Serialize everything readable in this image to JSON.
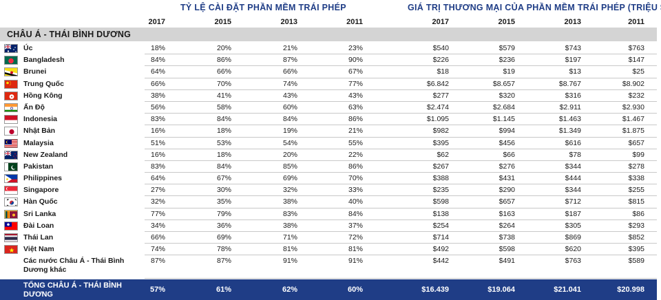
{
  "headers": {
    "rate_title": "TỶ LỆ CÀI ĐẶT PHẦN MỀM TRÁI PHÉP",
    "value_title": "GIÁ TRỊ THƯƠNG MẠI CỦA PHẦN MỀM TRÁI PHÉP (TRIỆU $)",
    "years": [
      "2017",
      "2015",
      "2013",
      "2011",
      "2017",
      "2015",
      "2013",
      "2011"
    ]
  },
  "region": "CHÂU Á - THÁI BÌNH DƯƠNG",
  "rows": [
    {
      "name": "Úc",
      "flag": "australia-flag-icon",
      "values": [
        "18%",
        "20%",
        "21%",
        "23%",
        "$540",
        "$579",
        "$743",
        "$763"
      ]
    },
    {
      "name": "Bangladesh",
      "flag": "bangladesh-flag-icon",
      "values": [
        "84%",
        "86%",
        "87%",
        "90%",
        "$226",
        "$236",
        "$197",
        "$147"
      ]
    },
    {
      "name": "Brunei",
      "flag": "brunei-flag-icon",
      "values": [
        "64%",
        "66%",
        "66%",
        "67%",
        "$18",
        "$19",
        "$13",
        "$25"
      ]
    },
    {
      "name": "Trung Quốc",
      "flag": "china-flag-icon",
      "values": [
        "66%",
        "70%",
        "74%",
        "77%",
        "$6.842",
        "$8.657",
        "$8.767",
        "$8.902"
      ]
    },
    {
      "name": "Hồng Kông",
      "flag": "hong-kong-flag-icon",
      "values": [
        "38%",
        "41%",
        "43%",
        "43%",
        "$277",
        "$320",
        "$316",
        "$232"
      ]
    },
    {
      "name": "Ấn Độ",
      "flag": "india-flag-icon",
      "values": [
        "56%",
        "58%",
        "60%",
        "63%",
        "$2.474",
        "$2.684",
        "$2.911",
        "$2.930"
      ]
    },
    {
      "name": "Indonesia",
      "flag": "indonesia-flag-icon",
      "values": [
        "83%",
        "84%",
        "84%",
        "86%",
        "$1.095",
        "$1.145",
        "$1.463",
        "$1.467"
      ]
    },
    {
      "name": "Nhật Bản",
      "flag": "japan-flag-icon",
      "values": [
        "16%",
        "18%",
        "19%",
        "21%",
        "$982",
        "$994",
        "$1.349",
        "$1.875"
      ]
    },
    {
      "name": "Malaysia",
      "flag": "malaysia-flag-icon",
      "values": [
        "51%",
        "53%",
        "54%",
        "55%",
        "$395",
        "$456",
        "$616",
        "$657"
      ]
    },
    {
      "name": "New Zealand",
      "flag": "new-zealand-flag-icon",
      "values": [
        "16%",
        "18%",
        "20%",
        "22%",
        "$62",
        "$66",
        "$78",
        "$99"
      ]
    },
    {
      "name": "Pakistan",
      "flag": "pakistan-flag-icon",
      "values": [
        "83%",
        "84%",
        "85%",
        "86%",
        "$267",
        "$276",
        "$344",
        "$278"
      ]
    },
    {
      "name": "Philippines",
      "flag": "philippines-flag-icon",
      "values": [
        "64%",
        "67%",
        "69%",
        "70%",
        "$388",
        "$431",
        "$444",
        "$338"
      ]
    },
    {
      "name": "Singapore",
      "flag": "singapore-flag-icon",
      "values": [
        "27%",
        "30%",
        "32%",
        "33%",
        "$235",
        "$290",
        "$344",
        "$255"
      ]
    },
    {
      "name": "Hàn Quốc",
      "flag": "south-korea-flag-icon",
      "values": [
        "32%",
        "35%",
        "38%",
        "40%",
        "$598",
        "$657",
        "$712",
        "$815"
      ]
    },
    {
      "name": "Sri Lanka",
      "flag": "sri-lanka-flag-icon",
      "values": [
        "77%",
        "79%",
        "83%",
        "84%",
        "$138",
        "$163",
        "$187",
        "$86"
      ]
    },
    {
      "name": "Đài Loan",
      "flag": "taiwan-flag-icon",
      "values": [
        "34%",
        "36%",
        "38%",
        "37%",
        "$254",
        "$264",
        "$305",
        "$293"
      ]
    },
    {
      "name": "Thái Lan",
      "flag": "thailand-flag-icon",
      "values": [
        "66%",
        "69%",
        "71%",
        "72%",
        "$714",
        "$738",
        "$869",
        "$852"
      ]
    },
    {
      "name": "Việt Nam",
      "flag": "vietnam-flag-icon",
      "values": [
        "74%",
        "78%",
        "81%",
        "81%",
        "$492",
        "$598",
        "$620",
        "$395"
      ]
    },
    {
      "name": "Các nước Châu Á - Thái Bình Dương khác",
      "flag": "",
      "values": [
        "87%",
        "87%",
        "91%",
        "91%",
        "$442",
        "$491",
        "$763",
        "$589"
      ]
    }
  ],
  "total": {
    "name": "TỔNG CHÂU Á - THÁI BÌNH DƯƠNG",
    "values": [
      "57%",
      "61%",
      "62%",
      "60%",
      "$16.439",
      "$19.064",
      "$21.041",
      "$20.998"
    ]
  },
  "colors": {
    "header_blue": "#1f3d86",
    "region_gray": "#d4d4d4"
  }
}
